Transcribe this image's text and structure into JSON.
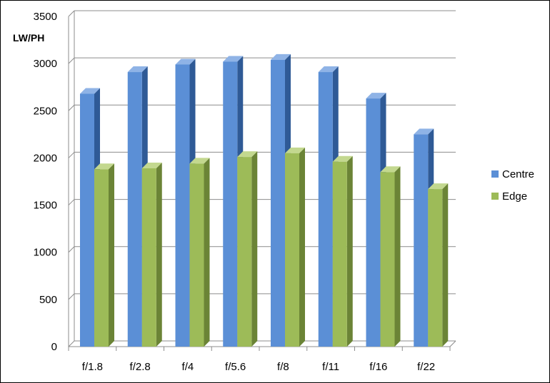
{
  "chart_data": {
    "type": "bar",
    "style": "3d-clustered-column",
    "ylabel": "LW/PH",
    "xlabel": "",
    "ylim": [
      0,
      3500
    ],
    "yticks": [
      0,
      500,
      1000,
      1500,
      2000,
      2500,
      3000,
      3500
    ],
    "grid": true,
    "legend_position": "right",
    "categories": [
      "f/1.8",
      "f/2.8",
      "f/4",
      "f/5.6",
      "f/8",
      "f/11",
      "f/16",
      "f/22"
    ],
    "series": [
      {
        "name": "Centre",
        "color": "#5b8fd6",
        "top_color": "#8fb3e6",
        "side_color": "#2f5a96",
        "values": [
          2680,
          2910,
          2990,
          3020,
          3040,
          2910,
          2630,
          2250
        ]
      },
      {
        "name": "Edge",
        "color": "#9dbb58",
        "top_color": "#c3d88f",
        "side_color": "#6b8436",
        "values": [
          1880,
          1890,
          1940,
          2010,
          2050,
          1960,
          1850,
          1670
        ]
      }
    ]
  }
}
